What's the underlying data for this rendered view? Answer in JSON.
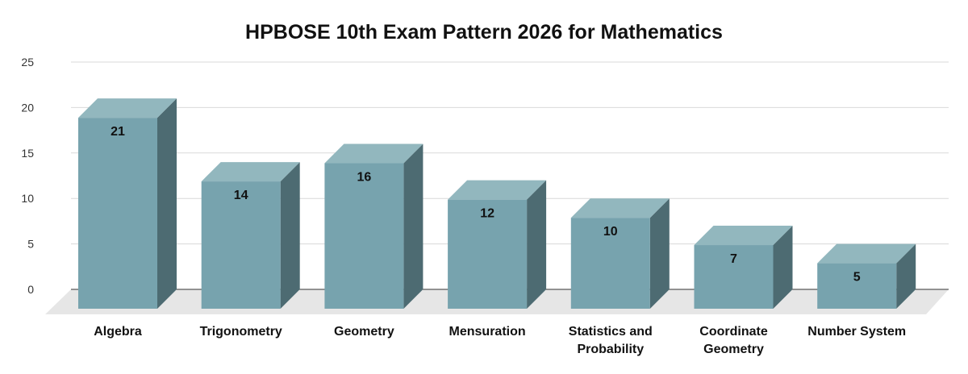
{
  "chart_data": {
    "type": "bar",
    "title": "HPBOSE 10th Exam Pattern 2026 for Mathematics",
    "xlabel": "",
    "ylabel": "",
    "categories": [
      "Algebra",
      "Trigonometry",
      "Geometry",
      "Mensuration",
      "Statistics and Probability",
      "Coordinate Geometry",
      "Number System"
    ],
    "category_lines": [
      [
        "Algebra"
      ],
      [
        "Trigonometry"
      ],
      [
        "Geometry"
      ],
      [
        "Mensuration"
      ],
      [
        "Statistics and",
        "Probability"
      ],
      [
        "Coordinate",
        "Geometry"
      ],
      [
        "Number System"
      ]
    ],
    "values": [
      21,
      14,
      16,
      12,
      10,
      7,
      5
    ],
    "ylim": [
      0,
      25
    ],
    "yticks": [
      0,
      5,
      10,
      15,
      20,
      25
    ],
    "grid": true,
    "legend": "none",
    "style": "3d-column",
    "colors": {
      "bar_front": "#77a3ae",
      "bar_top": "#92b7be",
      "bar_side": "#4d6b72",
      "floor": "#e6e6e6",
      "grid": "#d9d9d9",
      "axis": "#333333"
    }
  }
}
